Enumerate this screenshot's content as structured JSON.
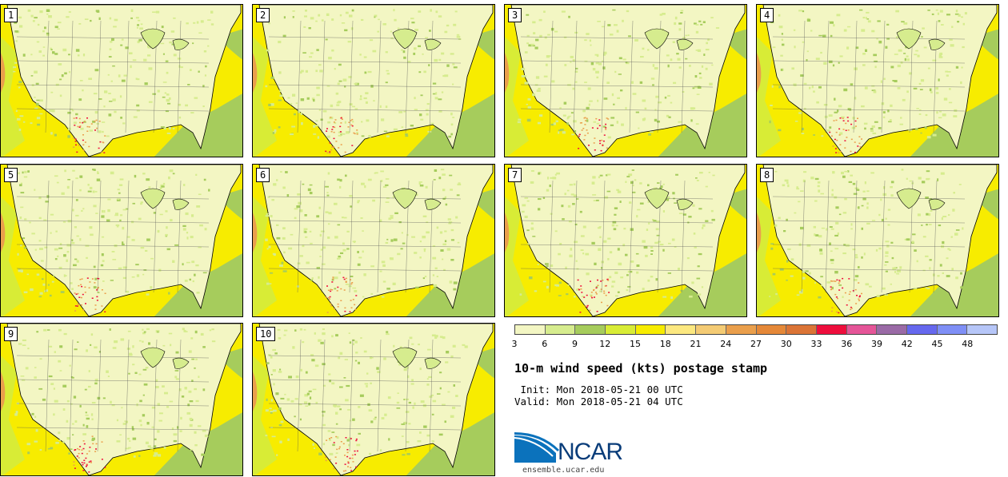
{
  "panels": [
    {
      "label": "1"
    },
    {
      "label": "2"
    },
    {
      "label": "3"
    },
    {
      "label": "4"
    },
    {
      "label": "5"
    },
    {
      "label": "6"
    },
    {
      "label": "7"
    },
    {
      "label": "8"
    },
    {
      "label": "9"
    },
    {
      "label": "10"
    }
  ],
  "colorbar": {
    "colors": [
      "#f3f6c3",
      "#d6ec8e",
      "#a6cc5c",
      "#d8ec36",
      "#f7ec00",
      "#fce880",
      "#f4cb74",
      "#ea9f4c",
      "#e58838",
      "#db7436",
      "#ee0e3c",
      "#e55598",
      "#9a6aa6",
      "#6668ee",
      "#7f8ff6",
      "#b6c6f8"
    ],
    "ticks": [
      "3",
      "6",
      "9",
      "12",
      "15",
      "18",
      "21",
      "24",
      "27",
      "30",
      "33",
      "36",
      "39",
      "42",
      "45",
      "48"
    ]
  },
  "title": "10-m wind speed (kts) postage stamp",
  "init": " Init: Mon 2018-05-21 00 UTC",
  "valid": "Valid: Mon 2018-05-21 04 UTC",
  "logo": {
    "text": "NCAR",
    "site": "ensemble.ucar.edu"
  }
}
